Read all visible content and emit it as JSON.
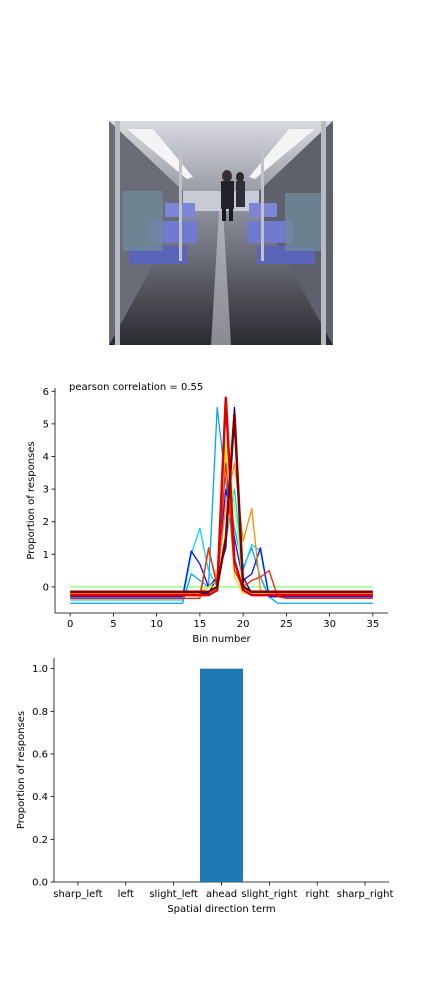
{
  "image_panel": {
    "description_icon": "subway-car-interior-photo"
  },
  "chart_data": [
    {
      "type": "line",
      "annotation": "pearson correlation = 0.55",
      "xlabel": "Bin number",
      "ylabel": "Proportion of responses",
      "xlim": [
        -1.75,
        36.75
      ],
      "ylim": [
        -0.8,
        6.1
      ],
      "xticks": [
        0,
        5,
        10,
        15,
        20,
        25,
        30,
        35
      ],
      "yticks": [
        0,
        1,
        2,
        3,
        4,
        5,
        6
      ],
      "grid": false,
      "series": [
        {
          "color": "#7cff79",
          "width": 1.3,
          "x": [
            0,
            35
          ],
          "y": [
            0.0,
            0.0
          ]
        },
        {
          "color": "#00a4ff",
          "width": 1.3,
          "x": [
            0,
            12,
            13,
            14,
            15,
            16,
            17,
            18,
            19,
            20,
            21,
            22,
            23,
            24,
            35
          ],
          "y": [
            -0.5,
            -0.5,
            -0.5,
            0.4,
            0.2,
            0.0,
            5.5,
            3.2,
            1.8,
            0.6,
            1.2,
            0.3,
            -0.3,
            -0.5,
            -0.5
          ]
        },
        {
          "color": "#00d4ff",
          "width": 1.3,
          "x": [
            0,
            12,
            13,
            14,
            15,
            16,
            17,
            18,
            19,
            20,
            21,
            22,
            23,
            35
          ],
          "y": [
            -0.4,
            -0.4,
            -0.4,
            1.0,
            1.8,
            0.5,
            0.0,
            1.4,
            3.0,
            0.5,
            1.3,
            1.1,
            -0.3,
            -0.3
          ]
        },
        {
          "color": "#0014ff",
          "width": 1.3,
          "x": [
            0,
            12,
            13,
            14,
            15,
            16,
            17,
            18,
            19,
            20,
            21,
            22,
            23,
            35
          ],
          "y": [
            -0.3,
            -0.3,
            -0.3,
            1.1,
            0.7,
            0.0,
            0.3,
            3.0,
            1.5,
            0.2,
            0.4,
            1.2,
            -0.3,
            -0.3
          ]
        },
        {
          "color": "#000096",
          "width": 1.3,
          "x": [
            0,
            14,
            15,
            16,
            17,
            18,
            19,
            20,
            21,
            22,
            35
          ],
          "y": [
            -0.2,
            -0.2,
            -0.2,
            -0.2,
            0.3,
            1.2,
            5.5,
            0.3,
            -0.2,
            -0.2,
            -0.2
          ]
        },
        {
          "color": "#a6ff51",
          "width": 1.3,
          "x": [
            0,
            15,
            16,
            17,
            18,
            19,
            20,
            21,
            35
          ],
          "y": [
            -0.2,
            -0.2,
            0.0,
            0.0,
            4.5,
            2.5,
            0.0,
            -0.2,
            -0.2
          ]
        },
        {
          "color": "#ffd800",
          "width": 1.3,
          "x": [
            0,
            14,
            15,
            16,
            17,
            18,
            19,
            20,
            21,
            35
          ],
          "y": [
            -0.2,
            -0.2,
            -0.2,
            0.0,
            0.2,
            4.2,
            0.3,
            -0.2,
            -0.2,
            -0.2
          ]
        },
        {
          "color": "#ff8900",
          "width": 1.3,
          "x": [
            0,
            15,
            16,
            17,
            18,
            19,
            20,
            21,
            22,
            23,
            35
          ],
          "y": [
            -0.2,
            -0.2,
            1.1,
            0.2,
            2.5,
            3.8,
            1.4,
            2.4,
            -0.1,
            -0.2,
            -0.2
          ]
        },
        {
          "color": "#ff2200",
          "width": 1.3,
          "x": [
            0,
            14,
            15,
            16,
            17,
            18,
            19,
            20,
            21,
            22,
            23,
            24,
            25,
            26,
            35
          ],
          "y": [
            -0.35,
            -0.35,
            -0.35,
            1.2,
            0.0,
            3.8,
            0.5,
            0.0,
            0.2,
            0.3,
            0.5,
            -0.3,
            -0.35,
            -0.35,
            -0.35
          ]
        },
        {
          "color": "#e00000",
          "width": 2.5,
          "x": [
            0,
            15,
            16,
            17,
            18,
            19,
            20,
            21,
            35
          ],
          "y": [
            -0.25,
            -0.25,
            -0.25,
            -0.1,
            5.8,
            0.8,
            -0.1,
            -0.25,
            -0.25
          ]
        },
        {
          "color": "#800000",
          "width": 2.5,
          "x": [
            0,
            15,
            16,
            17,
            18,
            19,
            20,
            21,
            35
          ],
          "y": [
            -0.15,
            -0.15,
            -0.15,
            0.0,
            1.5,
            5.3,
            0.0,
            -0.15,
            -0.15
          ]
        }
      ]
    },
    {
      "type": "bar",
      "xlabel": "Spatial direction term",
      "ylabel": "Proportion of responses",
      "categories": [
        "sharp_left",
        "left",
        "slight_left",
        "ahead",
        "slight_right",
        "right",
        "sharp_right"
      ],
      "values": [
        0.0,
        0.0,
        0.0,
        1.0,
        0.0,
        0.0,
        0.0
      ],
      "ylim": [
        0.0,
        1.05
      ],
      "yticks": [
        "0.0",
        "0.2",
        "0.4",
        "0.6",
        "0.8",
        "1.0"
      ],
      "bar_color": "#1f77b4",
      "grid": false
    }
  ]
}
